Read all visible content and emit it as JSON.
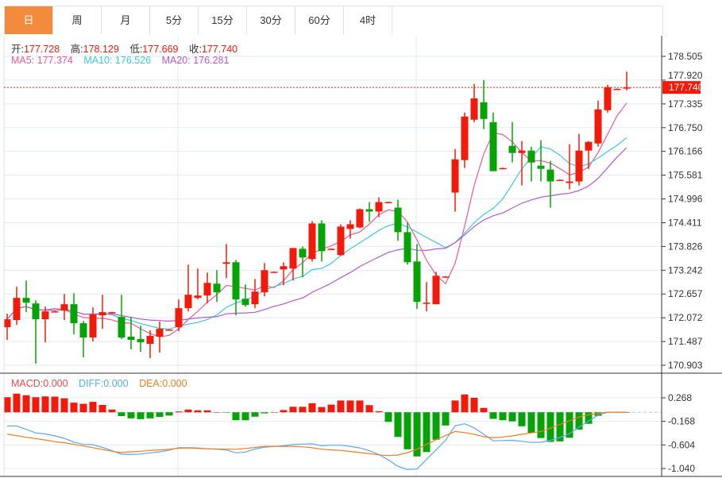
{
  "tabs": [
    {
      "label": "日",
      "active": true
    },
    {
      "label": "周"
    },
    {
      "label": "月"
    },
    {
      "label": "5分"
    },
    {
      "label": "15分"
    },
    {
      "label": "30分"
    },
    {
      "label": "60分"
    },
    {
      "label": "4时"
    }
  ],
  "ohlc_info": {
    "open_label": "开:",
    "open": "177.728",
    "high_label": "高:",
    "high": "178.129",
    "low_label": "低:",
    "low": "177.669",
    "close_label": "收:",
    "close": "177.740"
  },
  "ma_info": {
    "ma5": "MA5: 177.374",
    "ma10": "MA10: 176.526",
    "ma20": "MA20: 176.281"
  },
  "macd_info": {
    "macd": "MACD:0.000",
    "diff": "DIFF:0.000",
    "dea": "DEA:0.000"
  },
  "current_price": "177.740",
  "colors": {
    "up": "#f21b0b",
    "down": "#05a305",
    "ma5": "#ee5b91",
    "ma10": "#3ec8dd",
    "ma20": "#b35acb",
    "diff": "#5aaaf0",
    "dea": "#f57c20",
    "active_tab": "#f28c3c"
  },
  "chart_data": [
    {
      "type": "candlestick",
      "ylim": [
        170.903,
        178.505
      ],
      "yticks": [
        "178.505",
        "177.920",
        "177.335",
        "176.750",
        "176.166",
        "175.581",
        "174.996",
        "174.411",
        "173.826",
        "173.242",
        "172.657",
        "172.072",
        "171.487",
        "170.903"
      ],
      "grid": true,
      "ohlc": [
        [
          171.839,
          172.171,
          171.528,
          172.034
        ],
        [
          172.015,
          172.833,
          171.898,
          172.561
        ],
        [
          172.561,
          172.989,
          172.21,
          172.444
        ],
        [
          172.424,
          172.502,
          170.943,
          172.034
        ],
        [
          172.034,
          172.346,
          171.469,
          172.229
        ],
        [
          172.229,
          172.24,
          172.22,
          172.229
        ],
        [
          172.249,
          172.658,
          172.015,
          172.405
        ],
        [
          172.405,
          172.677,
          171.664,
          171.937
        ],
        [
          171.937,
          171.995,
          171.099,
          171.586
        ],
        [
          171.586,
          172.327,
          171.489,
          172.151
        ],
        [
          172.132,
          172.639,
          171.8,
          172.21
        ],
        [
          172.21,
          172.22,
          172.2,
          172.21
        ],
        [
          172.093,
          172.639,
          171.547,
          171.586
        ],
        [
          171.606,
          172.093,
          171.294,
          171.528
        ],
        [
          171.547,
          171.878,
          171.235,
          171.469
        ],
        [
          171.43,
          171.761,
          171.079,
          171.625
        ],
        [
          171.606,
          171.976,
          171.216,
          171.8
        ],
        [
          171.781,
          171.79,
          171.77,
          171.781
        ],
        [
          171.839,
          172.522,
          171.742,
          172.307
        ],
        [
          172.307,
          173.379,
          172.229,
          172.639
        ],
        [
          172.561,
          173.282,
          172.522,
          172.619
        ],
        [
          172.619,
          173.184,
          172.424,
          172.931
        ],
        [
          172.911,
          173.243,
          172.463,
          172.697
        ],
        [
          173.399,
          173.886,
          173.048,
          173.438
        ],
        [
          173.438,
          173.496,
          172.132,
          172.522
        ],
        [
          172.541,
          172.892,
          172.346,
          172.385
        ],
        [
          172.405,
          173.028,
          172.307,
          172.716
        ],
        [
          172.697,
          173.418,
          172.6,
          173.243
        ],
        [
          173.204,
          173.214,
          173.194,
          173.204
        ],
        [
          173.262,
          173.438,
          172.872,
          173.34
        ],
        [
          173.282,
          173.79,
          172.989,
          173.788
        ],
        [
          173.769,
          173.827,
          173.067,
          173.555
        ],
        [
          173.516,
          174.451,
          173.457,
          174.393
        ],
        [
          174.393,
          174.471,
          173.457,
          173.71
        ],
        [
          173.769,
          173.779,
          173.759,
          173.769
        ],
        [
          173.613,
          174.373,
          173.594,
          174.315
        ],
        [
          174.256,
          174.471,
          174.022,
          174.373
        ],
        [
          174.295,
          174.763,
          174.276,
          174.743
        ],
        [
          174.743,
          174.919,
          174.432,
          174.685
        ],
        [
          174.685,
          175.036,
          174.549,
          174.919
        ],
        [
          174.919,
          174.929,
          174.909,
          174.919
        ],
        [
          174.782,
          174.977,
          173.964,
          174.178
        ],
        [
          174.178,
          174.412,
          173.379,
          173.438
        ],
        [
          173.457,
          173.886,
          172.288,
          172.463
        ],
        [
          172.424,
          172.95,
          172.229,
          172.444
        ],
        [
          172.405,
          173.204,
          172.405,
          173.106
        ],
        [
          173.087,
          173.097,
          173.077,
          173.087
        ],
        [
          175.153,
          176.225,
          174.685,
          175.971
        ],
        [
          175.952,
          177.121,
          175.757,
          177.024
        ],
        [
          176.946,
          177.823,
          176.887,
          177.472
        ],
        [
          177.375,
          177.92,
          176.712,
          176.965
        ],
        [
          176.887,
          177.121,
          175.679,
          175.679
        ],
        [
          175.757,
          175.767,
          175.747,
          175.757
        ],
        [
          176.303,
          176.887,
          175.893,
          176.127
        ],
        [
          176.127,
          176.42,
          175.328,
          176.186
        ],
        [
          176.186,
          176.283,
          175.426,
          175.893
        ],
        [
          175.815,
          176.439,
          175.426,
          175.737
        ],
        [
          175.718,
          175.932,
          174.782,
          175.426
        ],
        [
          175.465,
          175.475,
          175.455,
          175.465
        ],
        [
          175.387,
          176.342,
          175.231,
          175.426
        ],
        [
          175.426,
          176.595,
          175.328,
          176.186
        ],
        [
          176.186,
          176.42,
          175.737,
          176.4
        ],
        [
          176.361,
          177.414,
          176.283,
          177.199
        ],
        [
          177.18,
          177.803,
          177.121,
          177.745
        ],
        [
          177.706,
          177.716,
          177.696,
          177.706
        ],
        [
          177.728,
          178.129,
          177.669,
          177.74
        ]
      ],
      "ma_periods": [
        5,
        10,
        20
      ]
    },
    {
      "type": "macd",
      "ylim": [
        -1.04,
        0.268
      ],
      "yticks": [
        "0.268",
        "-0.168",
        "-0.604",
        "-1.040"
      ],
      "macd": [
        0.279,
        0.345,
        0.315,
        0.279,
        0.294,
        0.29,
        0.259,
        0.178,
        0.157,
        0.193,
        0.137,
        0.051,
        -0.071,
        -0.112,
        -0.127,
        -0.112,
        -0.086,
        -0.061,
        0.015,
        0.051,
        0.036,
        0.036,
        0.0,
        -0.002,
        -0.147,
        -0.147,
        -0.081,
        -0.02,
        0.0,
        0.041,
        0.102,
        0.102,
        0.168,
        0.097,
        0.142,
        0.218,
        0.218,
        0.218,
        0.132,
        0.02,
        -0.178,
        -0.457,
        -0.685,
        -0.817,
        -0.736,
        -0.508,
        -0.244,
        0.218,
        0.33,
        0.269,
        0.081,
        -0.122,
        -0.147,
        -0.168,
        -0.259,
        -0.381,
        -0.477,
        -0.548,
        -0.538,
        -0.472,
        -0.32,
        -0.213,
        -0.066,
        0,
        0,
        0
      ],
      "diff": [
        -0.254,
        -0.254,
        -0.315,
        -0.381,
        -0.401,
        -0.437,
        -0.482,
        -0.553,
        -0.594,
        -0.599,
        -0.65,
        -0.711,
        -0.777,
        -0.782,
        -0.772,
        -0.751,
        -0.731,
        -0.701,
        -0.655,
        -0.655,
        -0.66,
        -0.675,
        -0.685,
        -0.696,
        -0.751,
        -0.736,
        -0.68,
        -0.645,
        -0.635,
        -0.619,
        -0.594,
        -0.589,
        -0.584,
        -0.619,
        -0.609,
        -0.609,
        -0.63,
        -0.66,
        -0.711,
        -0.782,
        -0.883,
        -1.0,
        -1.061,
        -1.051,
        -0.873,
        -0.696,
        -0.518,
        -0.249,
        -0.213,
        -0.289,
        -0.406,
        -0.528,
        -0.523,
        -0.518,
        -0.538,
        -0.558,
        -0.553,
        -0.518,
        -0.467,
        -0.396,
        -0.274,
        -0.162,
        -0.051,
        0,
        0,
        0
      ],
      "dea": [
        -0.406,
        -0.432,
        -0.462,
        -0.487,
        -0.513,
        -0.543,
        -0.564,
        -0.594,
        -0.624,
        -0.655,
        -0.69,
        -0.721,
        -0.746,
        -0.731,
        -0.721,
        -0.706,
        -0.696,
        -0.685,
        -0.665,
        -0.66,
        -0.67,
        -0.675,
        -0.68,
        -0.685,
        -0.685,
        -0.67,
        -0.65,
        -0.63,
        -0.63,
        -0.63,
        -0.63,
        -0.64,
        -0.655,
        -0.685,
        -0.696,
        -0.706,
        -0.726,
        -0.746,
        -0.767,
        -0.787,
        -0.802,
        -0.792,
        -0.746,
        -0.685,
        -0.594,
        -0.508,
        -0.432,
        -0.355,
        -0.376,
        -0.406,
        -0.452,
        -0.472,
        -0.457,
        -0.437,
        -0.406,
        -0.381,
        -0.355,
        -0.294,
        -0.223,
        -0.157,
        -0.086,
        -0.046,
        -0.02,
        0,
        0,
        0
      ]
    }
  ]
}
